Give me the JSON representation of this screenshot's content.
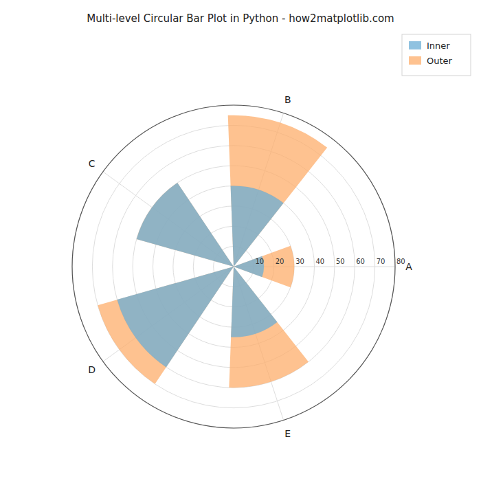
{
  "chart_data": {
    "type": "polar",
    "title": "Multi-level Circular Bar Plot in Python - how2matplotlib.com",
    "categories": [
      "A",
      "B",
      "C",
      "D",
      "E"
    ],
    "series": [
      {
        "name": "Inner",
        "color": "#6baed6",
        "values": [
          15,
          40,
          50,
          60,
          35
        ]
      },
      {
        "name": "Outer",
        "color": "#fdae6b",
        "values": [
          30,
          75,
          50,
          70,
          60
        ]
      }
    ],
    "ylim": [
      0,
      80
    ],
    "yticks": [
      10,
      20,
      30,
      40,
      50,
      60,
      70,
      80
    ],
    "grid": true,
    "legend": "upper right"
  }
}
